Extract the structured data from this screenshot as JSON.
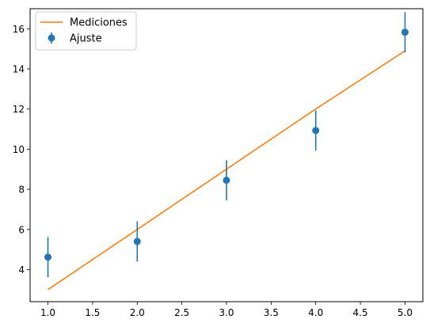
{
  "chart_data": {
    "type": "scatter",
    "title": "",
    "xlabel": "",
    "ylabel": "",
    "xlim": [
      0.8,
      5.2
    ],
    "ylim": [
      2.4,
      17.0
    ],
    "xticks": [
      "1.0",
      "1.5",
      "2.0",
      "2.5",
      "3.0",
      "3.5",
      "4.0",
      "4.5",
      "5.0"
    ],
    "yticks": [
      "4",
      "6",
      "8",
      "10",
      "12",
      "14",
      "16"
    ],
    "grid": false,
    "legend_position": "top-left",
    "series": [
      {
        "name": "Mediciones",
        "kind": "line",
        "color": "#ff7f0e",
        "x": [
          1,
          2,
          3,
          4,
          5
        ],
        "y": [
          3.0,
          6.0,
          9.0,
          12.0,
          14.9
        ]
      },
      {
        "name": "Ajuste",
        "kind": "errorbar",
        "color": "#1f77b4",
        "x": [
          1,
          2,
          3,
          4,
          5
        ],
        "y": [
          4.62,
          5.4,
          8.45,
          10.93,
          15.83
        ],
        "yerr": [
          1.0,
          1.0,
          1.0,
          1.0,
          1.0
        ]
      }
    ]
  }
}
